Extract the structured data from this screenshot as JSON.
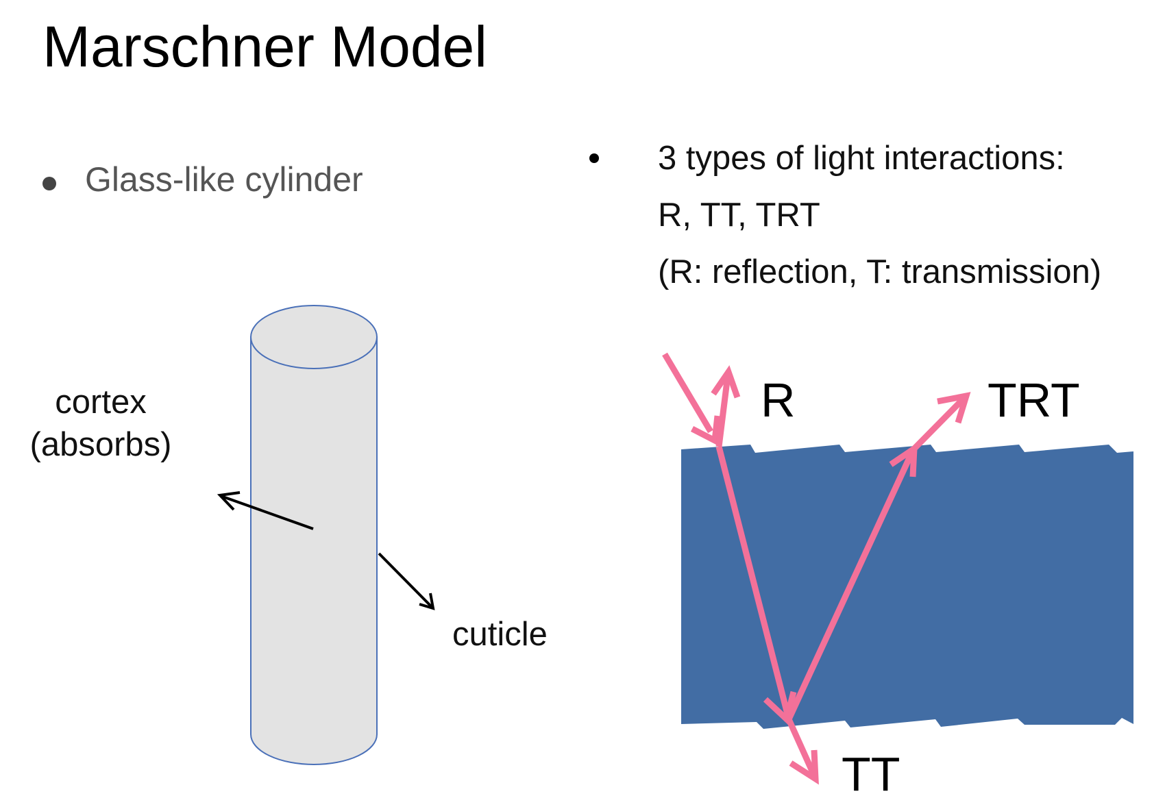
{
  "slide": {
    "title": "Marschner Model"
  },
  "left_bullet": {
    "text": "Glass-like cylinder"
  },
  "right_bullet": {
    "line1": "3 types of light interactions:",
    "line2": "R, TT, TRT",
    "line3": "(R: reflection, T: transmission)"
  },
  "cylinder_diagram": {
    "cortex_label_line1": "cortex",
    "cortex_label_line2": "(absorbs)",
    "cuticle_label": "cuticle"
  },
  "light_diagram": {
    "label_r": "R",
    "label_trt": "TRT",
    "label_tt": "TT"
  },
  "colors": {
    "hair_fill": "#426da4",
    "light_path": "#f37199",
    "cylinder_fill": "#e3e3e3",
    "cylinder_stroke": "#4a70b8"
  }
}
